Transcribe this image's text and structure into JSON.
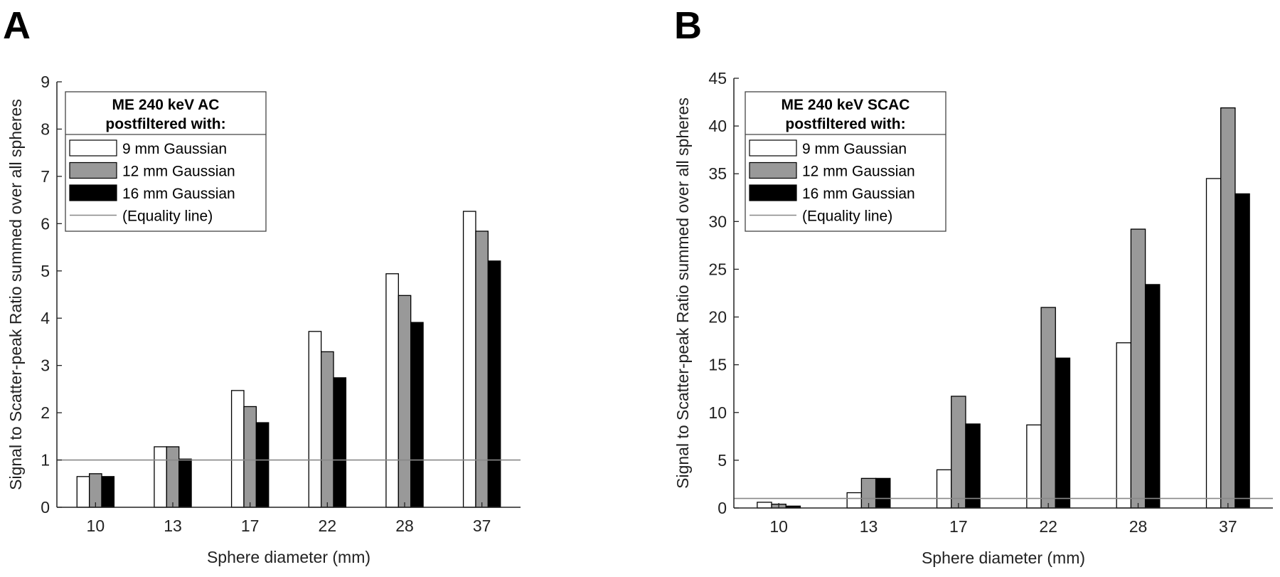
{
  "chart_data": [
    {
      "panel": "A",
      "type": "bar",
      "categories": [
        "10",
        "13",
        "17",
        "22",
        "28",
        "37"
      ],
      "series": [
        {
          "name": "9 mm Gaussian",
          "values": [
            0.65,
            1.28,
            2.47,
            3.72,
            4.94,
            6.26
          ],
          "color": "#ffffff"
        },
        {
          "name": "12 mm Gaussian",
          "values": [
            0.71,
            1.28,
            2.13,
            3.29,
            4.48,
            5.84
          ],
          "color": "#999999"
        },
        {
          "name": "16 mm Gaussian",
          "values": [
            0.65,
            1.02,
            1.79,
            2.74,
            3.91,
            5.21
          ],
          "color": "#000000"
        }
      ],
      "reference_line": {
        "name": "(Equality line)",
        "value": 1,
        "color": "#888888"
      },
      "ylim": [
        0,
        9
      ],
      "yticks": [
        "0",
        "1",
        "2",
        "3",
        "4",
        "5",
        "6",
        "7",
        "8",
        "9"
      ],
      "xlabel": "Sphere diameter (mm)",
      "ylabel": "Signal to Scatter-peak Ratio summed over all spheres",
      "legend": {
        "title_line1": "ME 240 keV AC",
        "title_line2": "postfiltered with:",
        "position": "top-left"
      },
      "grid": false
    },
    {
      "panel": "B",
      "type": "bar",
      "categories": [
        "10",
        "13",
        "17",
        "22",
        "28",
        "37"
      ],
      "series": [
        {
          "name": "9 mm Gaussian",
          "values": [
            0.6,
            1.6,
            4.0,
            8.7,
            17.3,
            34.5
          ],
          "color": "#ffffff"
        },
        {
          "name": "12 mm Gaussian",
          "values": [
            0.4,
            3.1,
            11.7,
            21.0,
            29.2,
            41.9
          ],
          "color": "#999999"
        },
        {
          "name": "16 mm Gaussian",
          "values": [
            0.2,
            3.1,
            8.8,
            15.7,
            23.4,
            32.9
          ],
          "color": "#000000"
        }
      ],
      "reference_line": {
        "name": "(Equality line)",
        "value": 1,
        "color": "#888888"
      },
      "ylim": [
        0,
        45
      ],
      "yticks": [
        "0",
        "5",
        "10",
        "15",
        "20",
        "25",
        "30",
        "35",
        "40",
        "45"
      ],
      "xlabel": "Sphere diameter (mm)",
      "ylabel": "Signal to Scatter-peak Ratio summed over all spheres",
      "legend": {
        "title_line1": "ME 240 keV SCAC",
        "title_line2": "postfiltered with:",
        "position": "top-left"
      },
      "grid": false
    }
  ]
}
